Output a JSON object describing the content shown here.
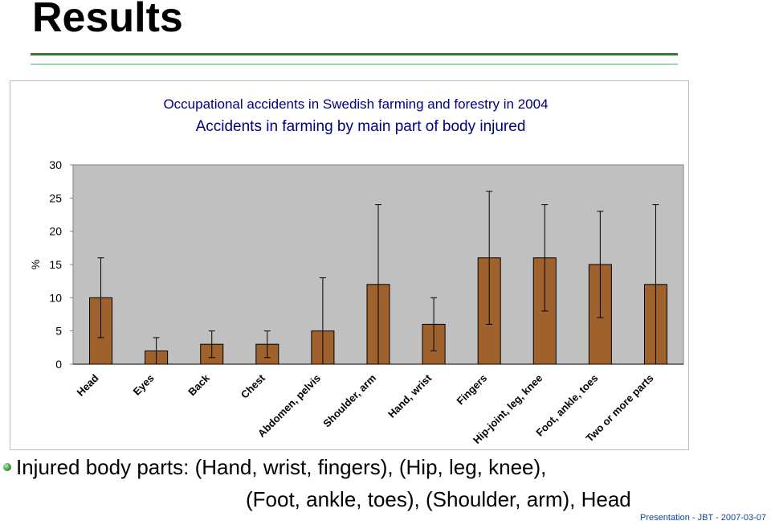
{
  "slide": {
    "title": "Results",
    "bullet_line1": "Injured body parts: (Hand, wrist, fingers), (Hip, leg, knee),",
    "bullet_line2": "(Foot, ankle, toes), (Shoulder, arm), Head",
    "footer": "Presentation  -  JBT  -  2007-03-07"
  },
  "colors": {
    "bar_fill": "#a0622d",
    "plot_background": "#c0c0c0",
    "title_rule": "#2e7d32",
    "title_rule_light": "#a5d6a7",
    "footer_text": "#0d47a1"
  },
  "chart_data": {
    "type": "bar",
    "title": "Occupational accidents in Swedish farming and forestry in 2004",
    "subtitle": "Accidents in farming by main part of body injured",
    "xlabel": "",
    "ylabel": "%",
    "ylim": [
      0,
      30
    ],
    "yticks": [
      0,
      5,
      10,
      15,
      20,
      25,
      30
    ],
    "grid": false,
    "legend": "none",
    "error_bars": true,
    "categories": [
      "Head",
      "Eyes",
      "Back",
      "Chest",
      "Abdomen, pelvis",
      "Shoulder, arm",
      "Hand, wrist",
      "Fingers",
      "Hip-joint, leg, knee",
      "Foot, ankle, toes",
      "Two or more parts"
    ],
    "values": [
      10,
      2,
      3,
      3,
      5,
      12,
      6,
      16,
      16,
      15,
      12
    ],
    "error_low": [
      4,
      0,
      1,
      1,
      0,
      0,
      2,
      6,
      8,
      7,
      0
    ],
    "error_high": [
      16,
      4,
      5,
      5,
      13,
      24,
      10,
      26,
      24,
      23,
      24
    ]
  }
}
